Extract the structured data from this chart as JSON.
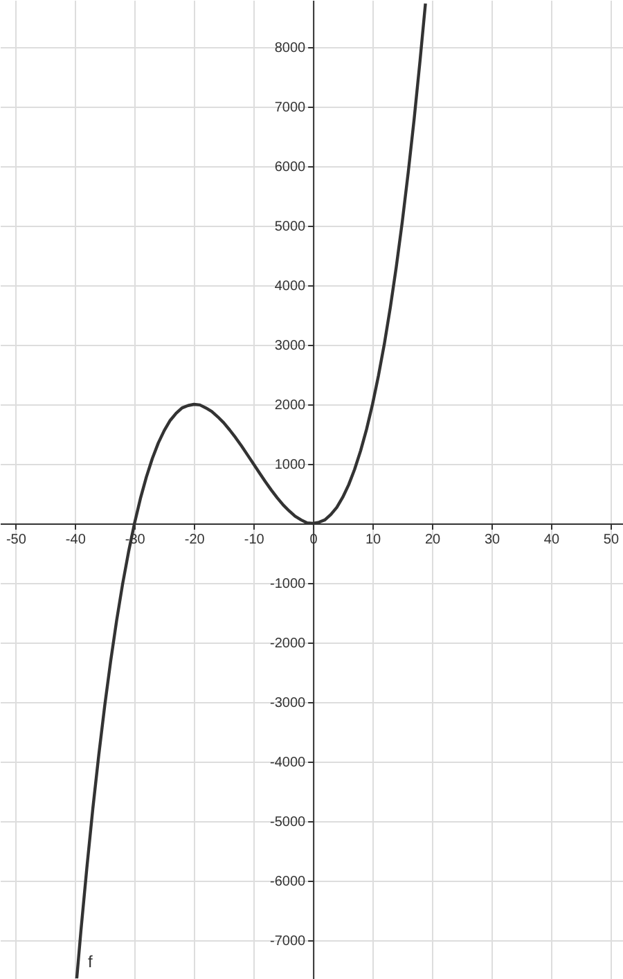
{
  "chart_data": {
    "type": "line",
    "series": [
      {
        "name": "f",
        "color": "#333333",
        "x": [
          -39.7,
          -39,
          -38,
          -37,
          -36,
          -35,
          -34,
          -33,
          -32,
          -31,
          -30,
          -29,
          -28,
          -27,
          -26,
          -25,
          -24,
          -23,
          -22,
          -21,
          -20,
          -19,
          -18,
          -17,
          -16,
          -15,
          -14,
          -13,
          -12,
          -11,
          -10,
          -9,
          -8,
          -7,
          -6,
          -5,
          -4,
          -3,
          -2,
          -1,
          0,
          1,
          2,
          3,
          4,
          5,
          6,
          7,
          8,
          9,
          10,
          11,
          12,
          13,
          14,
          15,
          16,
          17,
          18,
          18.9
        ],
        "values": [
          -7640,
          -6840,
          -5780,
          -4790,
          -3890,
          -3060,
          -2310,
          -1630,
          -1020,
          -480,
          0,
          420,
          780,
          1090,
          1350,
          1560,
          1730,
          1850,
          1940,
          1980,
          2000,
          1990,
          1940,
          1880,
          1790,
          1690,
          1570,
          1440,
          1300,
          1150,
          1000,
          850,
          700,
          560,
          430,
          310,
          210,
          120,
          60,
          10,
          0,
          20,
          60,
          150,
          270,
          440,
          650,
          910,
          1220,
          1580,
          2000,
          2480,
          3020,
          3630,
          4310,
          5060,
          5890,
          6790,
          7780,
          8730
        ]
      }
    ],
    "xlim": [
      -52.6,
      52.1
    ],
    "ylim": [
      -7650,
      8790
    ],
    "xticks": [
      -50,
      -40,
      -30,
      -20,
      -10,
      0,
      10,
      20,
      30,
      40,
      50
    ],
    "yticks": [
      -7000,
      -6000,
      -5000,
      -4000,
      -3000,
      -2000,
      -1000,
      {
        "value": 0,
        "label": null
      },
      1000,
      2000,
      3000,
      4000,
      5000,
      6000,
      7000,
      8000
    ],
    "grid": true,
    "marker": "none",
    "line_style": "solid"
  }
}
